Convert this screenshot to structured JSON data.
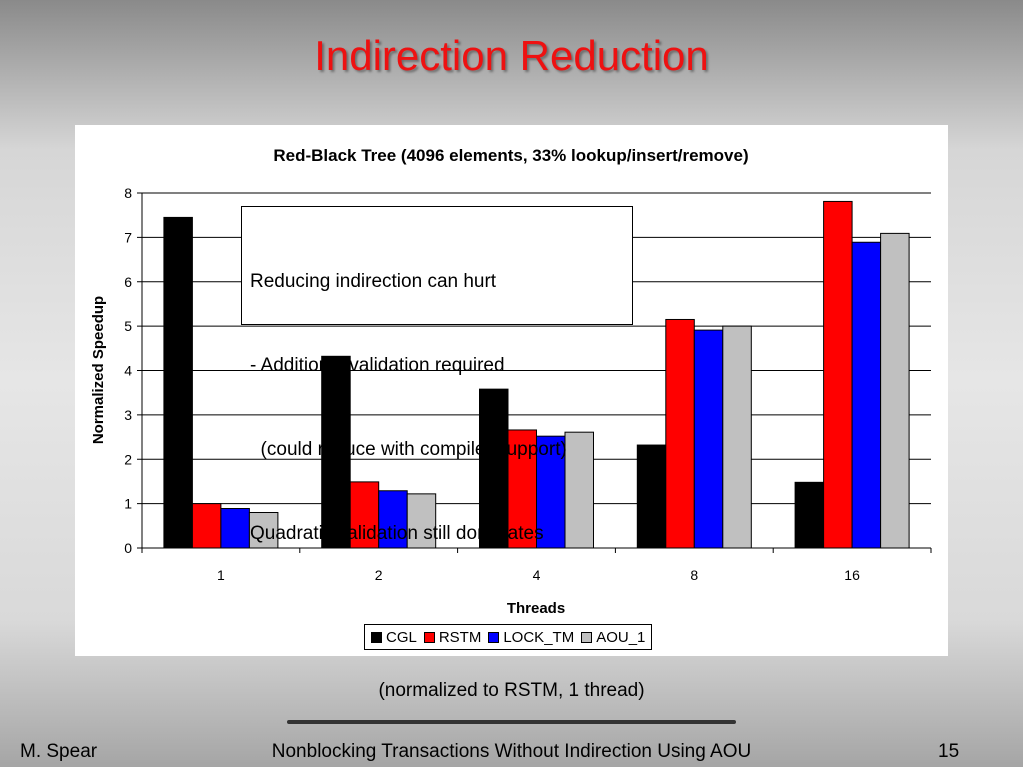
{
  "slide": {
    "title": "Indirection Reduction",
    "note": "(normalized to RSTM, 1 thread)",
    "footer_author": "M. Spear",
    "footer_title": "Nonblocking Transactions Without Indirection Using AOU",
    "page_number": "15"
  },
  "callout": {
    "lines": [
      "Reducing indirection can hurt",
      "- Additional validation required",
      "  (could reduce with compiler support)",
      "Quadratic validation still dominates"
    ]
  },
  "chart_data": {
    "type": "bar",
    "title": "Red-Black Tree (4096 elements, 33% lookup/insert/remove)",
    "xlabel": "Threads",
    "ylabel": "Normalized Speedup",
    "categories": [
      "1",
      "2",
      "4",
      "8",
      "16"
    ],
    "ylim": [
      0,
      8
    ],
    "yticks": [
      "0",
      "1",
      "2",
      "3",
      "4",
      "5",
      "6",
      "7",
      "8"
    ],
    "grid": true,
    "legend_position": "bottom",
    "series": [
      {
        "name": "CGL",
        "color": "#000000",
        "values": [
          7.45,
          4.32,
          3.58,
          2.32,
          1.48
        ]
      },
      {
        "name": "RSTM",
        "color": "#ff0000",
        "values": [
          1.0,
          1.49,
          2.66,
          5.15,
          7.81
        ]
      },
      {
        "name": "LOCK_TM",
        "color": "#0000ff",
        "values": [
          0.89,
          1.29,
          2.52,
          4.91,
          6.89
        ]
      },
      {
        "name": "AOU_1",
        "color": "#c0c0c0",
        "values": [
          0.8,
          1.22,
          2.61,
          5.0,
          7.09
        ]
      }
    ]
  }
}
